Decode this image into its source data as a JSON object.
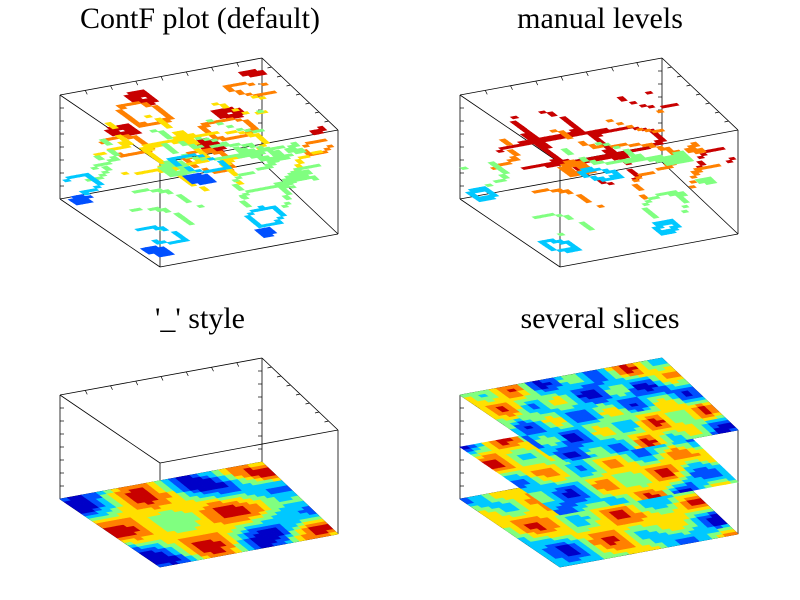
{
  "figure": {
    "background": "#ffffff",
    "frame_color": "#000000",
    "colormap": [
      "#0000c8",
      "#0050ff",
      "#00c8ff",
      "#80ff80",
      "#ffe000",
      "#ff8000",
      "#c80000"
    ]
  },
  "chart_data": [
    {
      "type": "heatmap",
      "subtype": "3d-filled-contour",
      "title": "ContF plot (default)",
      "xlabel": "",
      "ylabel": "",
      "zlabel": "",
      "axis_ranges": {
        "x": [
          -1,
          1
        ],
        "y": [
          -1,
          1
        ],
        "z": [
          -1,
          1
        ]
      },
      "grid": false,
      "legend": "none",
      "levels": [
        -0.9,
        -0.6,
        -0.3,
        0.0,
        0.3,
        0.6,
        0.9
      ],
      "rendering": "filled contour bands of the default level set, drawn in 3D space"
    },
    {
      "type": "heatmap",
      "subtype": "3d-filled-contour",
      "title": "manual levels",
      "xlabel": "",
      "ylabel": "",
      "zlabel": "",
      "axis_ranges": {
        "x": [
          -1,
          1
        ],
        "y": [
          -1,
          1
        ],
        "z": [
          -1,
          1
        ]
      },
      "grid": false,
      "legend": "none",
      "levels": [
        -0.8,
        -0.4,
        0.0,
        0.4
      ],
      "rendering": "filled contour bands at a few manually chosen levels"
    },
    {
      "type": "heatmap",
      "subtype": "3d-filled-contour",
      "title": "'_' style",
      "xlabel": "",
      "ylabel": "",
      "zlabel": "",
      "axis_ranges": {
        "x": [
          -1,
          1
        ],
        "y": [
          -1,
          1
        ],
        "z": [
          -1,
          1
        ]
      },
      "grid": false,
      "legend": "none",
      "slices_z": [
        -1
      ],
      "rendering": "filled contour map projected onto the bottom plane of the box"
    },
    {
      "type": "heatmap",
      "subtype": "3d-filled-contour",
      "title": "several slices",
      "xlabel": "",
      "ylabel": "",
      "zlabel": "",
      "axis_ranges": {
        "x": [
          -1,
          1
        ],
        "y": [
          -1,
          1
        ],
        "z": [
          -1,
          1
        ]
      },
      "grid": false,
      "legend": "none",
      "slices_z": [
        -1,
        0,
        1
      ],
      "rendering": "three horizontal filled contour slices stacked in z"
    }
  ]
}
